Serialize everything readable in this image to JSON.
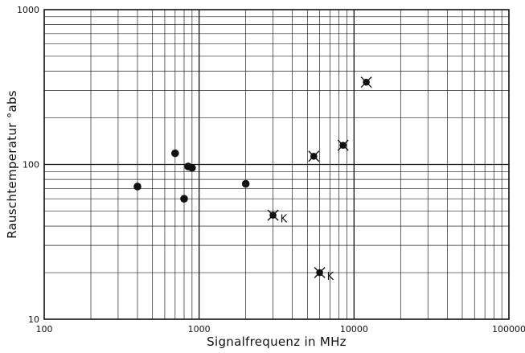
{
  "chart_data": {
    "type": "scatter",
    "xlabel": "Signalfrequenz in MHz",
    "ylabel": "Rauschtemperatur °abs",
    "xscale": "log",
    "yscale": "log",
    "xlim": [
      100,
      100000
    ],
    "ylim": [
      10,
      1000
    ],
    "grid": true,
    "x_ticks": [
      "100",
      "1000",
      "10000",
      "100000"
    ],
    "y_ticks": [
      "10",
      "100",
      "1000"
    ],
    "series": [
      {
        "marker": "dot",
        "points": [
          {
            "x": 400,
            "y": 72
          },
          {
            "x": 700,
            "y": 118
          },
          {
            "x": 800,
            "y": 60
          },
          {
            "x": 850,
            "y": 97
          },
          {
            "x": 900,
            "y": 95
          },
          {
            "x": 2000,
            "y": 75
          }
        ]
      },
      {
        "marker": "cross-dot",
        "points": [
          {
            "x": 3000,
            "y": 47,
            "label": "K"
          },
          {
            "x": 5500,
            "y": 113
          },
          {
            "x": 6000,
            "y": 20,
            "label": "K"
          },
          {
            "x": 8500,
            "y": 133
          },
          {
            "x": 12000,
            "y": 340
          }
        ]
      }
    ]
  }
}
